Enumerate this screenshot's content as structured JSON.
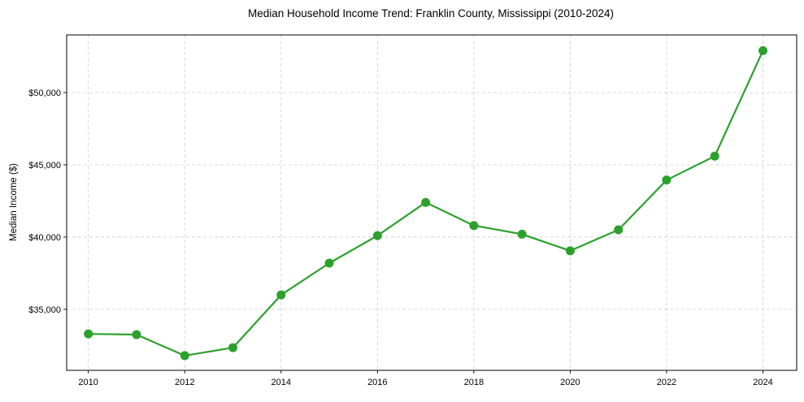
{
  "chart_data": {
    "type": "line",
    "title": "Median Household Income Trend: Franklin County, Mississippi (2010-2024)",
    "xlabel": "",
    "ylabel": "Median Income ($)",
    "x": [
      2010,
      2011,
      2012,
      2013,
      2014,
      2015,
      2016,
      2017,
      2018,
      2019,
      2020,
      2021,
      2022,
      2023,
      2024
    ],
    "series": [
      {
        "name": "Median Household Income",
        "color": "#2ca02c",
        "marker": "circle",
        "values": [
          33300,
          33250,
          31800,
          32350,
          36000,
          38200,
          40100,
          42400,
          40800,
          40200,
          39050,
          40500,
          43950,
          45600,
          52900
        ]
      }
    ],
    "xticks": [
      2010,
      2012,
      2014,
      2016,
      2018,
      2020,
      2022,
      2024
    ],
    "xtick_labels": [
      "2010",
      "2012",
      "2014",
      "2016",
      "2018",
      "2020",
      "2022",
      "2024"
    ],
    "yticks": [
      35000,
      40000,
      45000,
      50000
    ],
    "ytick_labels": [
      "$35,000",
      "$40,000",
      "$45,000",
      "$50,000"
    ],
    "xlim": [
      2009.55,
      2024.7
    ],
    "ylim": [
      30780,
      53990
    ],
    "grid": true,
    "legend": null
  }
}
